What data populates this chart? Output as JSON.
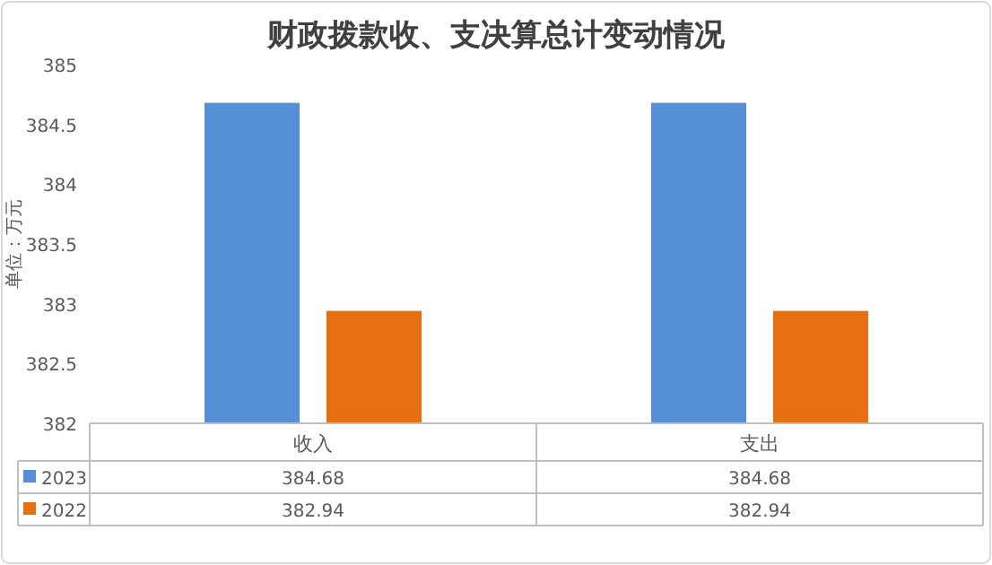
{
  "chart_data": {
    "type": "bar",
    "title": "财政拨款收、支决算总计变动情况",
    "ylabel": "单位：万元",
    "categories": [
      "收入",
      "支出"
    ],
    "series": [
      {
        "name": "2023",
        "color": "#5590d6",
        "values": [
          384.68,
          384.68
        ]
      },
      {
        "name": "2022",
        "color": "#e6700f",
        "values": [
          382.94,
          382.94
        ]
      }
    ],
    "ylim": [
      382,
      385
    ],
    "yticks": [
      382,
      382.5,
      383,
      383.5,
      384,
      384.5,
      385
    ],
    "data_labels": true,
    "legend": "bottom",
    "grid": false
  }
}
